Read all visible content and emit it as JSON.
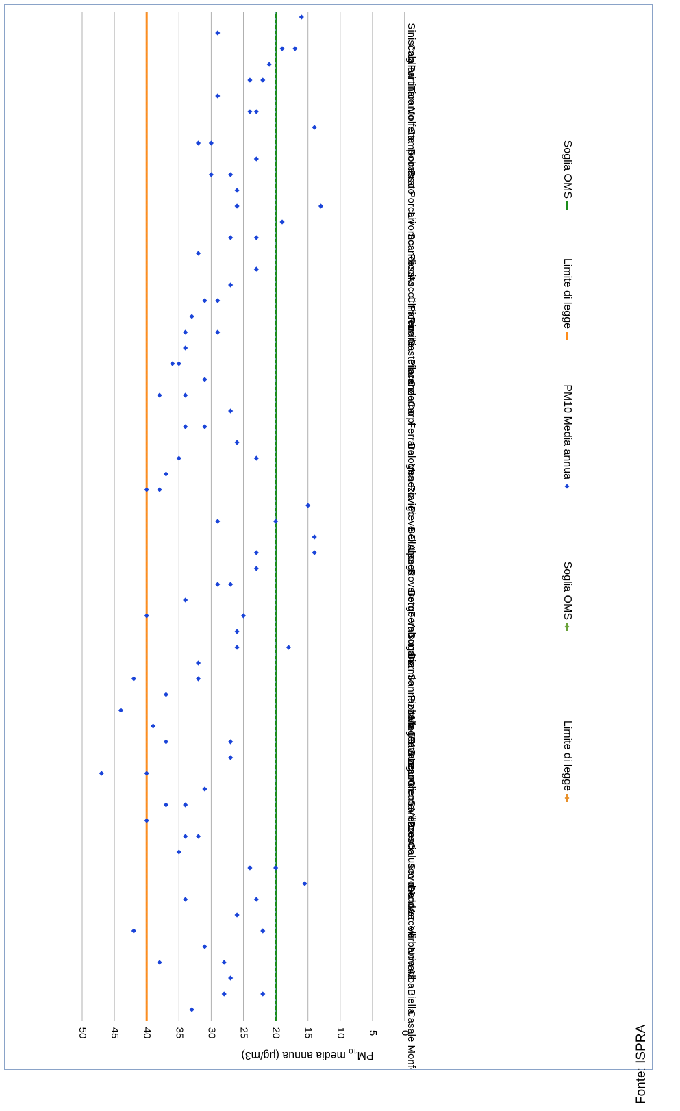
{
  "chart_data": {
    "type": "scatter",
    "orientation": "rotated-90-clockwise",
    "categories": [
      "Casale Monferrato",
      "Biella",
      "Alba",
      "Novara",
      "Verbania",
      "Vercelli",
      "Genova",
      "Savona",
      "Calusco d'Adda",
      "Brescia",
      "Sarezzo",
      "Crema",
      "Lecco",
      "Tavazzano con Villavesco",
      "Magenta",
      "Pioltello",
      "Sannazzaro De' Burgundi",
      "Bormio",
      "Sondrio",
      "Ferno",
      "Borgo Valsugana",
      "Rovereto",
      "Laces",
      "Belluno",
      "Pieve D'Alpago",
      "Rovigo",
      "Venezia",
      "Bologna",
      "Ferrara",
      "Carpi",
      "Colorno",
      "Piacenza",
      "Castellarano",
      "Rimini",
      "Chiaravalle",
      "Ascoli Piceno",
      "Pesaro",
      "Scandicci",
      "Livorno",
      "Porcari",
      "Prato",
      "Roma",
      "Campobasso",
      "Molfetta",
      "Taranto",
      "Partinico",
      "Cagliari",
      "Siniscola"
    ],
    "category_counts": [
      3,
      2,
      3,
      3,
      3,
      3,
      3,
      3,
      3,
      3,
      3,
      3,
      2,
      3,
      2,
      3,
      2,
      2,
      3,
      2,
      3,
      2,
      2,
      2,
      2,
      4,
      2,
      2,
      3,
      3,
      3,
      3,
      2,
      3,
      3,
      3,
      2,
      3,
      3,
      2,
      2,
      3,
      3,
      3,
      3,
      3,
      2,
      2
    ],
    "series": [
      {
        "name": "PM10 Media annua",
        "points": [
          [
            0,
            33
          ],
          [
            0.5,
            28
          ],
          [
            0.5,
            22
          ],
          [
            1,
            27
          ],
          [
            1.5,
            38
          ],
          [
            1.5,
            28
          ],
          [
            2,
            31
          ],
          [
            2.5,
            42
          ],
          [
            2.5,
            22
          ],
          [
            3,
            26
          ],
          [
            3.5,
            34
          ],
          [
            3.5,
            23
          ],
          [
            4,
            15.5
          ],
          [
            4.5,
            24
          ],
          [
            4.5,
            20
          ],
          [
            5,
            35
          ],
          [
            5.5,
            34
          ],
          [
            5.5,
            32
          ],
          [
            6,
            40
          ],
          [
            6.5,
            37
          ],
          [
            6.5,
            34
          ],
          [
            7,
            31
          ],
          [
            7.5,
            40
          ],
          [
            7.5,
            47
          ],
          [
            8,
            27
          ],
          [
            8.5,
            27
          ],
          [
            8.5,
            37
          ],
          [
            9,
            39
          ],
          [
            9.5,
            44
          ],
          [
            9.5,
            44
          ],
          [
            10,
            37
          ],
          [
            10.5,
            42
          ],
          [
            10.5,
            32
          ],
          [
            11,
            32
          ],
          [
            11.5,
            18
          ],
          [
            11.5,
            26
          ],
          [
            12,
            26
          ],
          [
            12.5,
            25
          ],
          [
            12.5,
            40
          ],
          [
            13,
            34
          ],
          [
            13.5,
            29
          ],
          [
            13.5,
            27
          ],
          [
            14,
            23
          ],
          [
            14.5,
            23
          ],
          [
            14.5,
            14
          ],
          [
            15,
            14
          ],
          [
            15.5,
            20
          ],
          [
            15.5,
            29
          ],
          [
            16,
            15
          ],
          [
            16.5,
            40
          ],
          [
            16.5,
            38
          ],
          [
            17,
            37
          ],
          [
            17.5,
            35
          ],
          [
            17.5,
            23
          ],
          [
            18,
            26
          ],
          [
            18.5,
            31
          ],
          [
            18.5,
            34
          ],
          [
            19,
            27
          ],
          [
            19.5,
            38
          ],
          [
            19.5,
            34
          ],
          [
            20,
            31
          ],
          [
            20.5,
            36
          ],
          [
            20.5,
            35
          ],
          [
            21,
            34
          ],
          [
            21.5,
            29
          ],
          [
            21.5,
            34
          ],
          [
            22,
            33
          ],
          [
            22.5,
            29
          ],
          [
            22.5,
            31
          ],
          [
            23,
            27
          ],
          [
            23.5,
            23
          ],
          [
            23.5,
            23
          ],
          [
            24,
            32
          ],
          [
            24.5,
            23
          ],
          [
            24.5,
            27
          ],
          [
            25,
            19
          ],
          [
            25.5,
            13
          ],
          [
            25.5,
            26
          ],
          [
            26,
            26
          ],
          [
            26.5,
            27
          ],
          [
            26.5,
            30
          ],
          [
            27,
            23
          ],
          [
            27.5,
            30
          ],
          [
            27.5,
            32
          ],
          [
            28,
            14
          ],
          [
            28.5,
            24
          ],
          [
            28.5,
            23
          ],
          [
            29,
            29
          ],
          [
            29.5,
            22
          ],
          [
            29.5,
            24
          ],
          [
            30,
            21
          ],
          [
            30.5,
            17
          ],
          [
            30.5,
            19
          ],
          [
            31,
            29
          ],
          [
            31.5,
            16
          ]
        ]
      },
      {
        "name": "Limite di legge",
        "value": 40,
        "color": "#ff8c1a"
      },
      {
        "name": "Soglia OMS",
        "value": 20,
        "color": "#1a8c1a"
      }
    ],
    "ylabel": "PM10 media annua (μg/m3)",
    "ylabel_base": "PM",
    "ylabel_sub": "10",
    "ylabel_rest": " media annua (μg/m3)",
    "ylim": [
      0,
      50
    ],
    "yticks": [
      0,
      5,
      10,
      15,
      20,
      25,
      30,
      35,
      40,
      45,
      50
    ],
    "grid": true,
    "legend": [
      {
        "label": "Limite di legge",
        "marker": "diamond-line",
        "color": "#e8902a"
      },
      {
        "label": "Soglia OMS",
        "marker": "diamond-line",
        "color": "#6aa23a"
      },
      {
        "label": "PM10 Media annua",
        "marker": "diamond",
        "color": "#1a44d8"
      },
      {
        "label": "Limite di legge",
        "marker": "line",
        "color": "#ff8c1a"
      },
      {
        "label": "Soglia OMS",
        "marker": "line",
        "color": "#1a8c1a"
      }
    ],
    "legend_position": "bottom",
    "colors": {
      "points": "#1a44d8",
      "grid": "#b0b0b0",
      "frame": "#8aa3c8"
    }
  },
  "source": "Fonte: ISPRA"
}
